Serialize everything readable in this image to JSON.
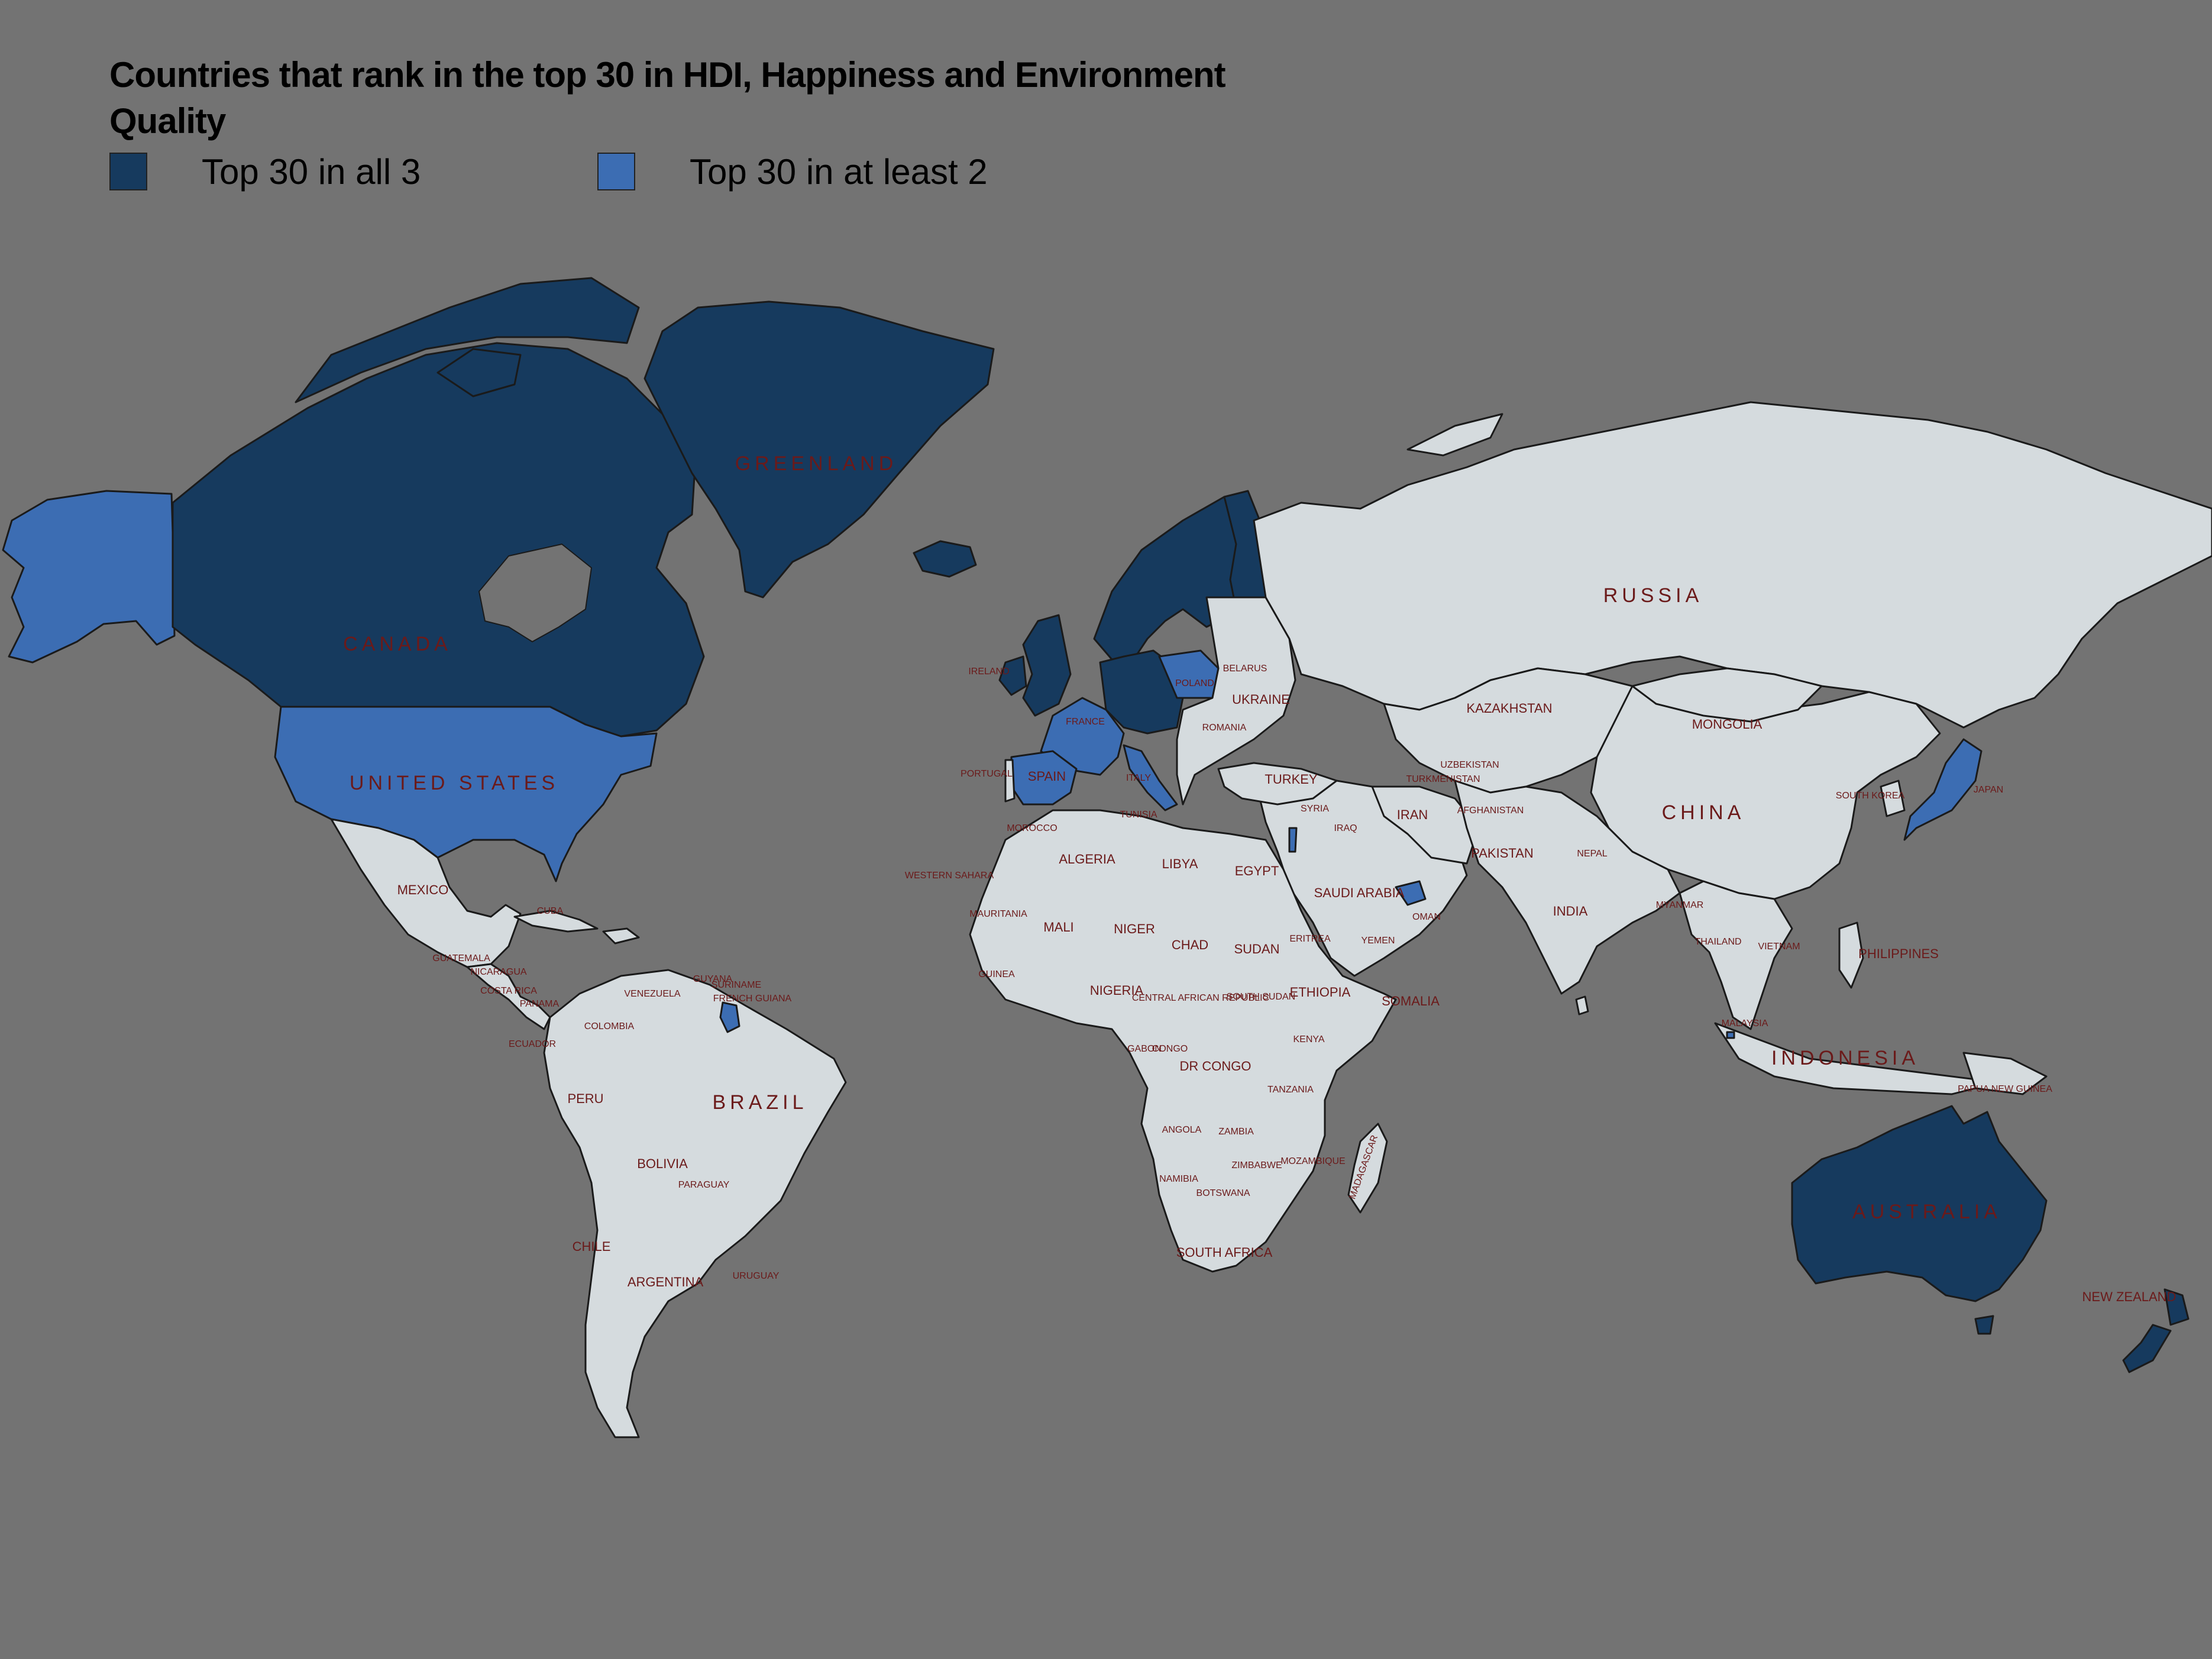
{
  "title": "Countries that rank in the top 30 in HDI, Happiness and Environment Quality",
  "colors": {
    "background": "#737373",
    "top30_all3": "#163a5e",
    "top30_at_least2": "#3c6db3",
    "other_land": "#d5dbde",
    "label": "#6b1a1a"
  },
  "legend": [
    {
      "label": "Top 30 in all 3",
      "color": "#163a5e"
    },
    {
      "label": "Top 30 in at least 2",
      "color": "#3c6db3"
    }
  ],
  "labels": {
    "greenland": "GREENLAND",
    "canada": "CANADA",
    "united_states": "UNITED STATES",
    "mexico": "MEXICO",
    "cuba": "CUBA",
    "guatemala": "GUATEMALA",
    "nicaragua": "NICARAGUA",
    "costa_rica": "COSTA RICA",
    "panama": "PANAMA",
    "venezuela": "VENEZUELA",
    "colombia": "COLOMBIA",
    "ecuador": "ECUADOR",
    "guyana": "GUYANA",
    "suriname": "SURINAME",
    "french_guiana": "FRENCH GUIANA",
    "peru": "PERU",
    "brazil": "BRAZIL",
    "bolivia": "BOLIVIA",
    "paraguay": "PARAGUAY",
    "chile": "CHILE",
    "argentina": "ARGENTINA",
    "uruguay": "URUGUAY",
    "ireland": "IRELAND",
    "france": "FRANCE",
    "spain": "SPAIN",
    "portugal": "PORTUGAL",
    "poland": "POLAND",
    "belarus": "BELARUS",
    "ukraine": "UKRAINE",
    "romania": "ROMANIA",
    "italy": "ITALY",
    "turkey": "TURKEY",
    "russia": "RUSSIA",
    "kazakhstan": "KAZAKHSTAN",
    "mongolia": "MONGOLIA",
    "china": "CHINA",
    "japan": "JAPAN",
    "south_korea": "SOUTH KOREA",
    "uzbekistan": "UZBEKISTAN",
    "turkmenistan": "TURKMENISTAN",
    "afghanistan": "AFGHANISTAN",
    "pakistan": "PAKISTAN",
    "iran": "IRAN",
    "iraq": "IRAQ",
    "syria": "SYRIA",
    "saudi_arabia": "SAUDI ARABIA",
    "yemen": "YEMEN",
    "oman": "OMAN",
    "india": "INDIA",
    "nepal": "NEPAL",
    "myanmar": "MYANMAR",
    "thailand": "THAILAND",
    "vietnam": "VIETNAM",
    "philippines": "PHILIPPINES",
    "malaysia": "MALAYSIA",
    "indonesia": "INDONESIA",
    "papua_new_guinea": "PAPUA NEW GUINEA",
    "australia": "AUSTRALIA",
    "new_zealand": "NEW ZEALAND",
    "morocco": "MOROCCO",
    "western_sahara": "WESTERN SAHARA",
    "tunisia": "TUNISIA",
    "algeria": "ALGERIA",
    "libya": "LIBYA",
    "egypt": "EGYPT",
    "mauritania": "MAURITANIA",
    "mali": "MALI",
    "niger": "NIGER",
    "chad": "CHAD",
    "sudan": "SUDAN",
    "eritrea": "ERITREA",
    "ethiopia": "ETHIOPIA",
    "somalia": "SOMALIA",
    "south_sudan": "SOUTH SUDAN",
    "nigeria": "NIGERIA",
    "guinea": "GUINEA",
    "central_african_republic": "CENTRAL AFRICAN REPUBLIC",
    "gabon": "GABON",
    "congo": "CONGO",
    "dr_congo": "DR CONGO",
    "kenya": "KENYA",
    "tanzania": "TANZANIA",
    "angola": "ANGOLA",
    "zambia": "ZAMBIA",
    "mozambique": "MOZAMBIQUE",
    "zimbabwe": "ZIMBABWE",
    "namibia": "NAMIBIA",
    "botswana": "BOTSWANA",
    "south_africa": "SOUTH AFRICA",
    "madagascar": "MADAGASCAR"
  }
}
